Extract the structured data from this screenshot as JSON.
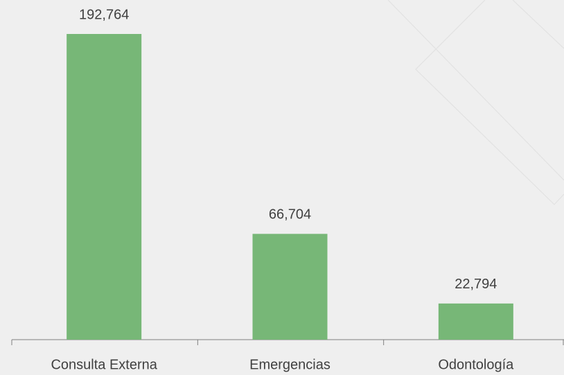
{
  "chart_data": {
    "type": "bar",
    "categories": [
      "Consulta Externa",
      "Emergencias",
      "Odontología"
    ],
    "values": [
      192764,
      66704,
      22794
    ],
    "value_labels": [
      "192,764",
      "66,704",
      "22,794"
    ],
    "color": "#77b777"
  }
}
